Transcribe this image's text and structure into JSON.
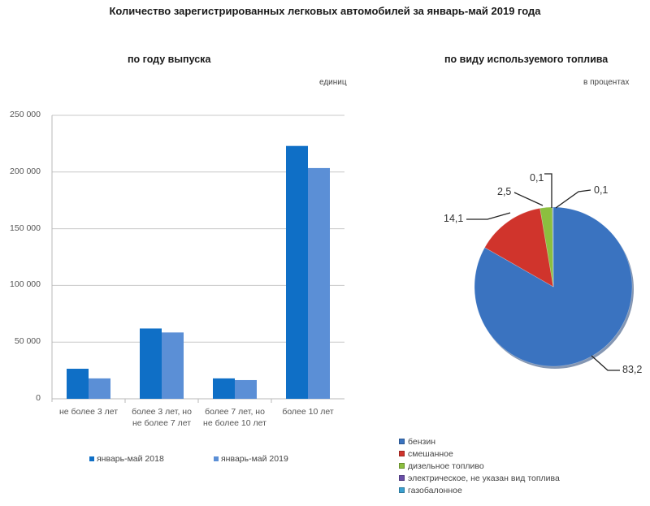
{
  "title": "Количество зарегистрированных легковых автомобилей за январь-май 2019 года",
  "chart_data": [
    {
      "type": "bar",
      "title": "по году выпуска",
      "unit_label": "единиц",
      "xlabel": "",
      "ylabel": "",
      "ylim": [
        0,
        250000
      ],
      "yticks": [
        "0",
        "50 000",
        "100 000",
        "150 000",
        "200 000",
        "250 000"
      ],
      "grid": true,
      "legend_position": "bottom",
      "categories": [
        [
          "не более 3 лет"
        ],
        [
          "более 3 лет, но",
          "не более 7 лет"
        ],
        [
          "более 7 лет, но",
          "не более 10 лет"
        ],
        [
          "более 10 лет"
        ]
      ],
      "series": [
        {
          "name": "январь-май 2018",
          "color": "#0f6fc6",
          "values": [
            26500,
            62000,
            18000,
            223000
          ]
        },
        {
          "name": "январь-май 2019",
          "color": "#5b8fd6",
          "values": [
            18000,
            58500,
            16500,
            203500
          ]
        }
      ]
    },
    {
      "type": "pie",
      "title": "по виду используемого топлива",
      "unit_label": "в процентах",
      "legend_position": "bottom",
      "slices": [
        {
          "name": "бензин",
          "value": 83.2,
          "label": "83,2",
          "color": "#3a73c0"
        },
        {
          "name": "смешанное",
          "value": 14.1,
          "label": "14,1",
          "color": "#d0342c"
        },
        {
          "name": "дизельное топливо",
          "value": 2.5,
          "label": "2,5",
          "color": "#8cbf3f"
        },
        {
          "name": "электрическое, не указан вид топлива",
          "value": 0.1,
          "label": "0,1",
          "color": "#6a4fa8"
        },
        {
          "name": "газобалонное",
          "value": 0.1,
          "label": "0,1",
          "color": "#3aa0d0"
        }
      ]
    }
  ]
}
